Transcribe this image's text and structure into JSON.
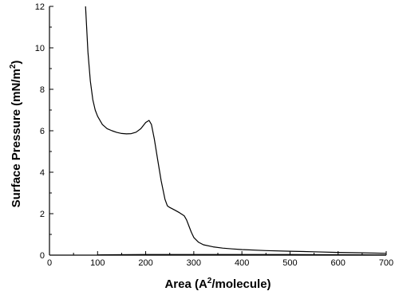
{
  "chart_data": {
    "type": "line",
    "title": "",
    "xlabel": "Area (A",
    "xlabel_sup": "2",
    "xlabel_tail": "/molecule)",
    "ylabel": "Surface Pressure (mN/m",
    "ylabel_sup": "2",
    "ylabel_tail": ")",
    "xlim": [
      0,
      700
    ],
    "ylim": [
      0,
      12
    ],
    "xticks": [
      0,
      100,
      200,
      300,
      400,
      500,
      600,
      700
    ],
    "yticks": [
      0,
      2,
      4,
      6,
      8,
      10,
      12
    ],
    "grid": false,
    "series": [
      {
        "x": [
          75,
          80,
          85,
          90,
          95,
          100,
          110,
          120,
          130,
          140,
          150,
          160,
          170,
          180,
          190,
          200,
          207,
          212,
          218,
          225,
          232,
          240,
          245,
          250,
          260,
          270,
          280,
          285,
          290,
          295,
          300,
          310,
          320,
          340,
          360,
          380,
          400,
          450,
          500,
          550,
          600,
          650,
          700
        ],
        "y": [
          12.0,
          9.8,
          8.4,
          7.5,
          7.0,
          6.7,
          6.3,
          6.1,
          6.0,
          5.92,
          5.87,
          5.85,
          5.86,
          5.93,
          6.1,
          6.4,
          6.5,
          6.3,
          5.6,
          4.6,
          3.6,
          2.7,
          2.38,
          2.3,
          2.18,
          2.05,
          1.9,
          1.7,
          1.4,
          1.1,
          0.85,
          0.62,
          0.5,
          0.4,
          0.34,
          0.3,
          0.27,
          0.22,
          0.19,
          0.16,
          0.13,
          0.11,
          0.09
        ]
      },
      {
        "x": [
          100,
          200,
          300,
          400,
          500,
          600,
          700
        ],
        "y": [
          0.01,
          0.03,
          0.03,
          0.03,
          0.03,
          0.02,
          0.01
        ]
      }
    ]
  }
}
